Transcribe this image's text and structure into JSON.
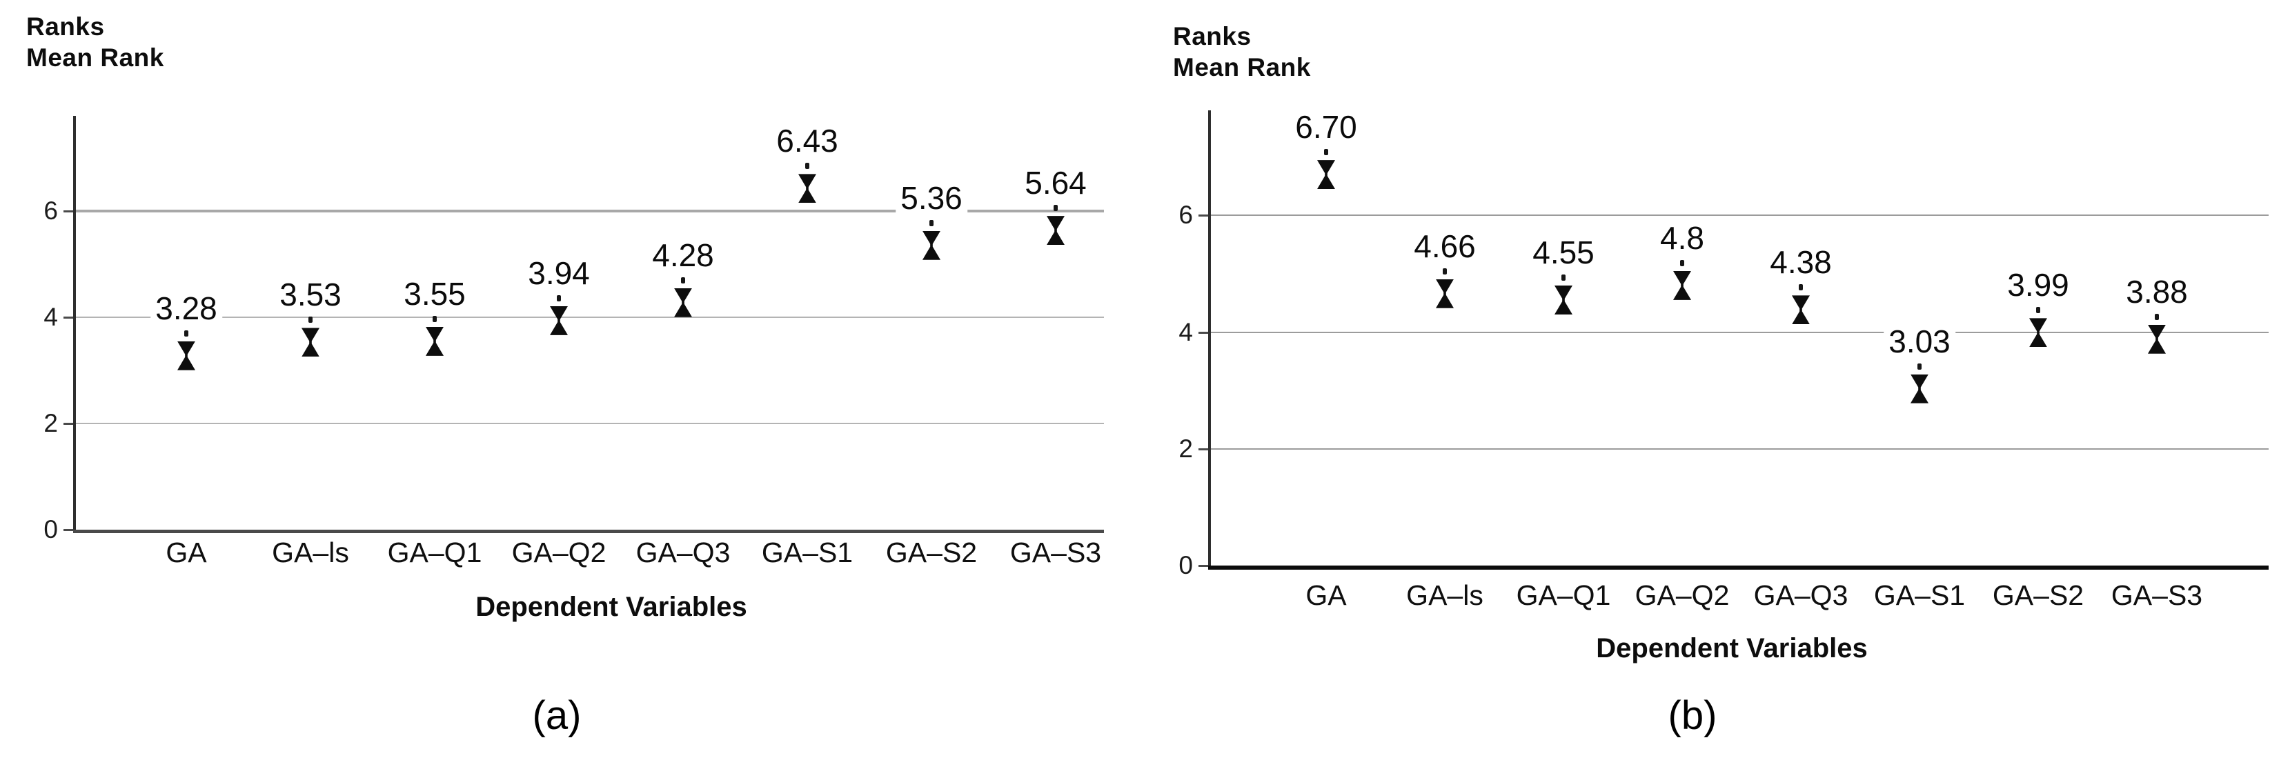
{
  "figure": {
    "background": "#ffffff",
    "description_colors": {
      "marker": "#0d0d0d",
      "text": "#111111",
      "gridline_panel_a": "#b4b4b4",
      "gridline_panel_b": "#9c9c9c",
      "y_axis": "#2e2e2e",
      "x_axis_panel_a": "#4a4a4a",
      "x_axis_panel_b": "#0b0b0b"
    }
  },
  "chart_data": [
    {
      "type": "scatter",
      "panel": "(a)",
      "title_lines": [
        "Ranks",
        "Mean Rank"
      ],
      "xlabel": "Dependent Variables",
      "categories": [
        "GA",
        "GA–ls",
        "GA–Q1",
        "GA–Q2",
        "GA–Q3",
        "GA–S1",
        "GA–S2",
        "GA–S3"
      ],
      "values": [
        3.28,
        3.53,
        3.55,
        3.94,
        4.28,
        6.43,
        5.36,
        5.64
      ],
      "value_labels": [
        "3.28",
        "3.53",
        "3.55",
        "3.94",
        "4.28",
        "6.43",
        "5.36",
        "5.64"
      ],
      "yticks": [
        0,
        2,
        4,
        6
      ],
      "ylim": [
        0,
        7.8
      ],
      "grid": "horizontal",
      "legend": "none",
      "marker_style": "hourglass"
    },
    {
      "type": "scatter",
      "panel": "(b)",
      "title_lines": [
        "Ranks",
        "Mean Rank"
      ],
      "xlabel": "Dependent Variables",
      "categories": [
        "GA",
        "GA–ls",
        "GA–Q1",
        "GA–Q2",
        "GA–Q3",
        "GA–S1",
        "GA–S2",
        "GA–S3"
      ],
      "values": [
        6.7,
        4.66,
        4.55,
        4.8,
        4.38,
        3.03,
        3.99,
        3.88
      ],
      "value_labels": [
        "6.70",
        "4.66",
        "4.55",
        "4.8",
        "4.38",
        "3.03",
        "3.99",
        "3.88"
      ],
      "yticks": [
        0,
        2,
        4,
        6
      ],
      "ylim": [
        0,
        7.8
      ],
      "grid": "horizontal",
      "legend": "none",
      "marker_style": "hourglass"
    }
  ]
}
